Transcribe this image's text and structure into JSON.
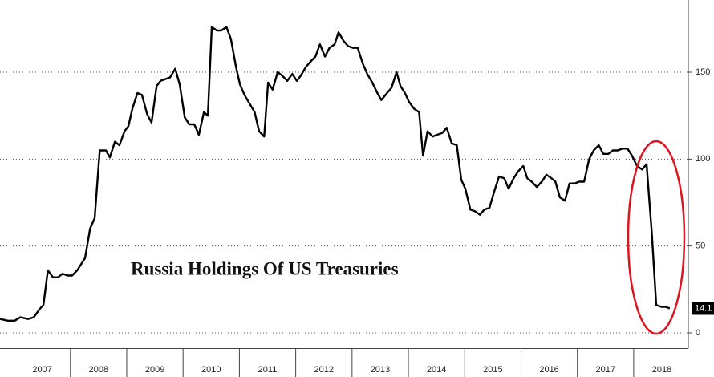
{
  "chart_data": {
    "type": "line",
    "title": "Russia Holdings Of US Treasuries",
    "x": [
      2006.75,
      2006.89,
      2007.01,
      2007.11,
      2007.25,
      2007.35,
      2007.46,
      2007.52,
      2007.6,
      2007.69,
      2007.78,
      2007.86,
      2007.95,
      2008.03,
      2008.12,
      2008.26,
      2008.35,
      2008.43,
      2008.52,
      2008.63,
      2008.7,
      2008.79,
      2008.87,
      2008.96,
      2009.03,
      2009.1,
      2009.19,
      2009.27,
      2009.36,
      2009.44,
      2009.53,
      2009.6,
      2009.68,
      2009.77,
      2009.86,
      2009.94,
      2010.03,
      2010.11,
      2010.2,
      2010.28,
      2010.37,
      2010.44,
      2010.51,
      2010.6,
      2010.68,
      2010.77,
      2010.85,
      2010.94,
      2011.01,
      2011.09,
      2011.18,
      2011.27,
      2011.35,
      2011.44,
      2011.51,
      2011.59,
      2011.68,
      2011.76,
      2011.85,
      2011.94,
      2012.02,
      2012.09,
      2012.18,
      2012.26,
      2012.35,
      2012.43,
      2012.52,
      2012.6,
      2012.69,
      2012.76,
      2012.85,
      2012.93,
      2013.02,
      2013.1,
      2013.19,
      2013.27,
      2013.36,
      2013.45,
      2013.52,
      2013.62,
      2013.7,
      2013.79,
      2013.86,
      2013.94,
      2014.01,
      2014.1,
      2014.19,
      2014.26,
      2014.34,
      2014.43,
      2014.51,
      2014.6,
      2014.68,
      2014.77,
      2014.86,
      2014.94,
      2015.01,
      2015.1,
      2015.18,
      2015.27,
      2015.35,
      2015.44,
      2015.52,
      2015.61,
      2015.7,
      2015.78,
      2015.87,
      2015.95,
      2016.04,
      2016.11,
      2016.19,
      2016.28,
      2016.37,
      2016.45,
      2016.54,
      2016.61,
      2016.69,
      2016.78,
      2016.86,
      2016.95,
      2017.03,
      2017.12,
      2017.21,
      2017.29,
      2017.38,
      2017.46,
      2017.55,
      2017.63,
      2017.72,
      2017.8,
      2017.89,
      2017.97,
      2018.06,
      2018.15,
      2018.23,
      2018.32,
      2018.4,
      2018.49,
      2018.57,
      2018.64
    ],
    "series": [
      {
        "color": "#000000",
        "values": [
          8,
          7,
          7,
          9,
          8,
          9,
          14,
          16,
          36,
          32,
          32,
          34,
          33,
          33,
          36,
          43,
          60,
          66,
          105,
          105,
          101,
          110,
          108,
          116,
          119,
          129,
          138,
          137,
          126,
          121,
          142,
          145,
          146,
          147,
          152,
          143,
          124,
          120,
          120,
          114,
          127,
          125,
          176,
          174,
          174,
          176,
          169,
          153,
          143,
          137,
          132,
          127,
          116,
          113,
          144,
          140,
          150,
          148,
          145,
          149,
          145,
          148,
          153,
          156,
          159,
          166,
          159,
          164,
          166,
          173,
          168,
          165,
          164,
          164,
          155,
          149,
          144,
          138,
          134,
          138,
          141,
          150,
          142,
          138,
          133,
          129,
          127,
          102,
          116,
          113,
          114,
          115,
          118,
          109,
          108,
          88,
          83,
          71,
          70,
          68,
          71,
          72,
          81,
          90,
          89,
          83,
          89,
          93,
          96,
          89,
          87,
          84,
          87,
          91,
          89,
          87,
          78,
          76,
          86,
          86,
          87,
          87,
          100,
          105,
          108,
          103,
          103,
          105,
          105,
          106,
          106,
          102,
          96,
          94,
          97,
          58,
          16,
          15,
          15,
          14.1
        ]
      }
    ],
    "last_label": "14.1",
    "xlim": [
      2006.75,
      2018.97
    ],
    "xticks": [
      {
        "value": 2007.5,
        "label": "2007"
      },
      {
        "value": 2008.5,
        "label": "2008"
      },
      {
        "value": 2009.5,
        "label": "2009"
      },
      {
        "value": 2010.5,
        "label": "2010"
      },
      {
        "value": 2011.5,
        "label": "2011"
      },
      {
        "value": 2012.5,
        "label": "2012"
      },
      {
        "value": 2013.5,
        "label": "2013"
      },
      {
        "value": 2014.5,
        "label": "2014"
      },
      {
        "value": 2015.5,
        "label": "2015"
      },
      {
        "value": 2016.5,
        "label": "2016"
      },
      {
        "value": 2017.5,
        "label": "2017"
      },
      {
        "value": 2018.5,
        "label": "2018"
      }
    ],
    "ylim": [
      -9,
      191
    ],
    "yticks": [
      0,
      50,
      100,
      150
    ],
    "grid": true
  }
}
